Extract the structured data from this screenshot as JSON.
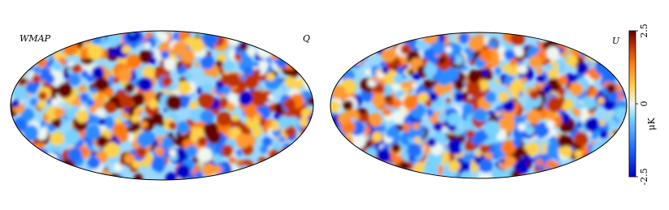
{
  "maps": [
    {
      "labels": [
        "WMAP",
        "Q"
      ]
    },
    {
      "labels": [
        "U"
      ]
    }
  ],
  "colorbar": {
    "lim": [
      -2.5,
      2.5
    ],
    "ticks": [
      -2.5,
      0,
      2.5
    ],
    "unit": "μK"
  }
}
